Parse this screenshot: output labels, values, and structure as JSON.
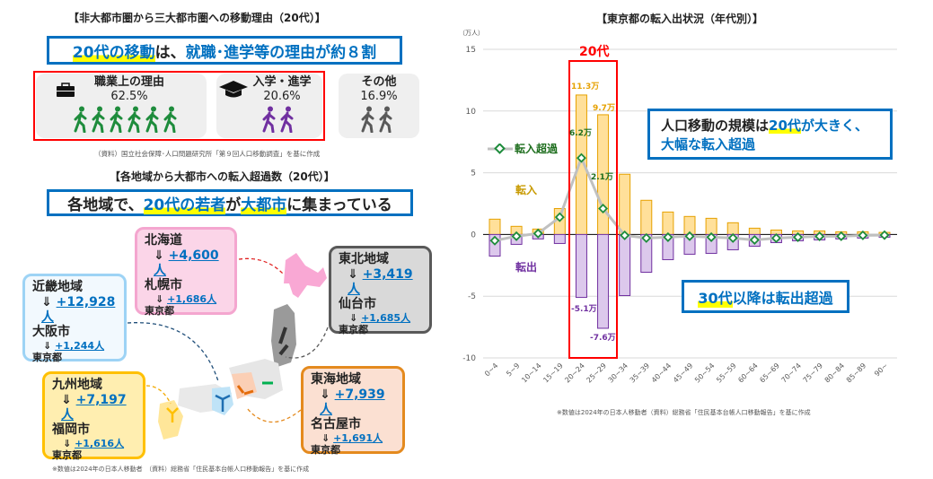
{
  "left": {
    "title1": "【非大都市圏から三大都市圏への移動理由（20代）】",
    "headline1": {
      "part1": "20代の移動",
      "part2": "は、",
      "part3": "就職･進学等の理由が約８割"
    },
    "reasons": [
      {
        "label": "職業上の理由",
        "value": "62.5%",
        "icon": "briefcase-icon",
        "walkers": 6,
        "color": "#1e8c3c"
      },
      {
        "label": "入学・進学",
        "value": "20.6%",
        "icon": "graduation-cap-icon",
        "walkers": 2,
        "color": "#7030a0"
      },
      {
        "label": "その他",
        "value": "16.9%",
        "walkers": 2,
        "color": "#595959"
      }
    ],
    "source1": "（資料）国立社会保障･人口問題研究所「第９回人口移動調査」を基に作成",
    "title2": "【各地域から大都市への転入超過数（20代）】",
    "headline2": {
      "part1": "各地域で、",
      "part2": "20代の若者",
      "part3": "が",
      "part4": "大都市",
      "part5": "に集まっている"
    },
    "regions": [
      {
        "name": "北海道",
        "arrow": "⇓",
        "region_value": "+4,600人",
        "city": "札幌市",
        "city_value": "+1,686人",
        "dest": "東京都",
        "color": "#f4a6cf"
      },
      {
        "name": "東北地域",
        "arrow": "⇓",
        "region_value": "+3,419人",
        "city": "仙台市",
        "city_value": "+1,685人",
        "dest": "東京都",
        "color": "#595959"
      },
      {
        "name": "近畿地域",
        "arrow": "⇓",
        "region_value": "+12,928人",
        "city": "大阪市",
        "city_value": "+1,244人",
        "dest": "東京都",
        "color": "#9dd3f5"
      },
      {
        "name": "九州地域",
        "arrow": "⇓",
        "region_value": "+7,197人",
        "city": "福岡市",
        "city_value": "+1,616人",
        "dest": "東京都",
        "color": "#ffc000"
      },
      {
        "name": "東海地域",
        "arrow": "⇓",
        "region_value": "+7,939人",
        "city": "名古屋市",
        "city_value": "+1,691人",
        "dest": "東京都",
        "color": "#e48a1e"
      }
    ],
    "footnote": "※数値は2024年の日本人移動者　（資料）総務省「住民基本台帳人口移動報告」を基に作成"
  },
  "chart_data": {
    "type": "bar",
    "title": "【東京都の転入出状況（年代別）】",
    "yunit": "（万人）",
    "ylim": [
      -10,
      15
    ],
    "yticks": [
      15,
      10,
      5,
      0,
      -5,
      -10
    ],
    "grid": true,
    "categories": [
      "0~4",
      "5~9",
      "10~14",
      "15~19",
      "20~24",
      "25~29",
      "30~34",
      "35~39",
      "40~44",
      "45~49",
      "50~54",
      "55~59",
      "60~64",
      "65~69",
      "70~74",
      "75~79",
      "80~84",
      "85~89",
      "90~"
    ],
    "series": [
      {
        "name": "転入",
        "type": "bar",
        "color": "#ffe09a",
        "stroke": "#e6a100",
        "values": [
          1.24,
          0.66,
          0.44,
          2.1,
          11.3,
          9.7,
          4.88,
          2.77,
          1.82,
          1.46,
          1.31,
          0.95,
          0.51,
          0.36,
          0.29,
          0.29,
          0.22,
          0.22,
          0.17
        ]
      },
      {
        "name": "転出",
        "type": "bar",
        "color": "#dcc8ec",
        "stroke": "#7030a0",
        "values": [
          -1.75,
          -0.8,
          -0.36,
          -0.73,
          -5.1,
          -7.6,
          -4.95,
          -3.06,
          -2.04,
          -1.6,
          -1.53,
          -1.24,
          -0.95,
          -0.66,
          -0.51,
          -0.44,
          -0.36,
          -0.29,
          -0.22
        ]
      },
      {
        "name": "転入超過",
        "type": "line",
        "color": "#c0c0c0",
        "marker": "#1e8c3c",
        "values": [
          -0.5,
          -0.14,
          0.08,
          1.4,
          6.2,
          2.1,
          -0.07,
          -0.29,
          -0.22,
          -0.14,
          -0.22,
          -0.29,
          -0.44,
          -0.3,
          -0.22,
          -0.15,
          -0.14,
          -0.07,
          -0.05
        ]
      }
    ],
    "data_labels": {
      "in_20_24": "11.3万",
      "in_25_29": "9.7万",
      "net_20_24": "6.2万",
      "net_25_29": "2.1万",
      "out_20_24": "-5.1万",
      "out_25_29": "-7.6万"
    },
    "highlight_label": "20代",
    "series_label_in": "転入",
    "series_label_out": "転出",
    "callout1": {
      "part1": "人口移動の規模は",
      "part2": "20代",
      "part3": "が大きく、",
      "part4": "大幅な転入超過"
    },
    "callout2": {
      "part1": "30代",
      "part2": "以降は転出超過"
    },
    "footnote": "※数値は2024年の日本人移動者（資料）総務省「住民基本台帳人口移動報告」を基に作成"
  }
}
